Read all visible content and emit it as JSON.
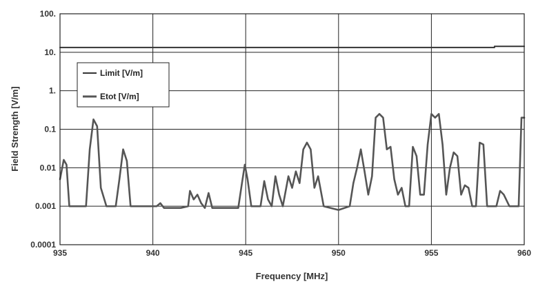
{
  "chart_data": {
    "type": "line",
    "title": "",
    "xlabel": "Frequency [MHz]",
    "ylabel": "Field Strength [V/m]",
    "xlim": [
      935,
      960
    ],
    "ylim": [
      0.0001,
      100
    ],
    "y_scale": "log",
    "grid": true,
    "legend_position": "top-left",
    "x_ticks": [
      "935",
      "940",
      "945",
      "950",
      "955",
      "960"
    ],
    "y_ticks": [
      "0.0001",
      "0.001",
      "0.01",
      "0.1",
      "1.",
      "10.",
      "100."
    ],
    "colors": {
      "limit": "#333333",
      "etot": "#555555",
      "grid": "#222222"
    },
    "series": [
      {
        "name": "Limit [V/m]",
        "x": [
          935,
          958.4,
          958.4,
          960
        ],
        "y": [
          13.3,
          13.3,
          14.3,
          14.3
        ]
      },
      {
        "name": "Etot [V/m]",
        "x": [
          935.0,
          935.2,
          935.35,
          935.5,
          936.0,
          936.4,
          936.6,
          936.8,
          937.0,
          937.2,
          937.5,
          938.0,
          938.2,
          938.4,
          938.6,
          938.8,
          939.5,
          940.2,
          940.4,
          940.6,
          941.5,
          941.9,
          942.0,
          942.2,
          942.4,
          942.6,
          942.8,
          943.0,
          943.2,
          944.0,
          944.6,
          944.8,
          944.95,
          945.1,
          945.3,
          945.8,
          946.0,
          946.2,
          946.4,
          946.6,
          946.8,
          947.0,
          947.3,
          947.5,
          947.7,
          947.9,
          948.1,
          948.3,
          948.5,
          948.7,
          948.9,
          949.2,
          950.0,
          950.6,
          950.8,
          951.0,
          951.2,
          951.4,
          951.6,
          951.8,
          952.0,
          952.2,
          952.4,
          952.6,
          952.8,
          953.0,
          953.2,
          953.4,
          953.6,
          953.8,
          954.0,
          954.2,
          954.4,
          954.6,
          954.8,
          955.0,
          955.2,
          955.4,
          955.6,
          955.8,
          956.0,
          956.2,
          956.4,
          956.6,
          956.8,
          957.0,
          957.2,
          957.4,
          957.6,
          957.8,
          958.0,
          958.2,
          958.5,
          958.7,
          958.9,
          959.2,
          959.5,
          959.7,
          959.85,
          960.0
        ],
        "y": [
          0.005,
          0.016,
          0.012,
          0.001,
          0.001,
          0.001,
          0.03,
          0.18,
          0.12,
          0.003,
          0.001,
          0.001,
          0.005,
          0.03,
          0.015,
          0.001,
          0.001,
          0.001,
          0.0012,
          0.0009,
          0.0009,
          0.001,
          0.0025,
          0.0015,
          0.002,
          0.0012,
          0.0009,
          0.0022,
          0.0009,
          0.0009,
          0.0009,
          0.004,
          0.012,
          0.005,
          0.001,
          0.001,
          0.0045,
          0.0015,
          0.001,
          0.006,
          0.002,
          0.001,
          0.006,
          0.003,
          0.008,
          0.004,
          0.03,
          0.045,
          0.03,
          0.003,
          0.006,
          0.001,
          0.0008,
          0.001,
          0.004,
          0.01,
          0.03,
          0.008,
          0.002,
          0.006,
          0.2,
          0.25,
          0.2,
          0.03,
          0.035,
          0.005,
          0.002,
          0.003,
          0.001,
          0.001,
          0.035,
          0.02,
          0.002,
          0.002,
          0.04,
          0.25,
          0.2,
          0.25,
          0.04,
          0.002,
          0.01,
          0.025,
          0.02,
          0.002,
          0.0035,
          0.003,
          0.001,
          0.001,
          0.045,
          0.04,
          0.001,
          0.001,
          0.001,
          0.0025,
          0.002,
          0.001,
          0.001,
          0.001,
          0.2,
          0.2
        ]
      }
    ]
  }
}
